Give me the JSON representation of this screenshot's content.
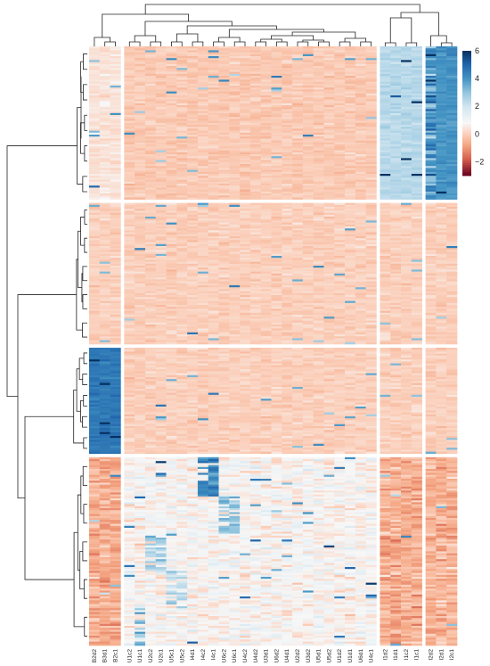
{
  "chart_data": {
    "type": "heatmap",
    "title": "",
    "xlabel": "",
    "ylabel": "",
    "columns": [
      "B2d2",
      "B3d1",
      "B2c1",
      "U1c2",
      "U1c1",
      "U2c2",
      "U2c1",
      "U5c1",
      "U5c2",
      "I4d1",
      "I4c2",
      "I4c1",
      "U6c2",
      "U6c1",
      "U4c2",
      "U4d2",
      "U3d1",
      "U6d2",
      "U4d1",
      "U2d2",
      "U3d2",
      "U5d1",
      "U5d2",
      "U1d2",
      "U1d1",
      "U6d1",
      "U4c1",
      "I1d2",
      "I1d1",
      "I1c2",
      "I1c1",
      "I2d2",
      "I2d1",
      "I2c1"
    ],
    "column_groups": [
      3,
      24,
      4,
      3
    ],
    "row_group_fractions": [
      0.26,
      0.24,
      0.18,
      0.32
    ],
    "group_pattern": [
      [
        0.4,
        -0.1,
        2.4,
        4.0,
        0
      ],
      [
        0,
        0,
        0,
        0,
        4.2
      ],
      [
        4.6,
        0,
        0,
        0,
        0
      ],
      [
        -0.6,
        0.8,
        -0.6,
        -0.5,
        -0.6
      ]
    ],
    "high_blocks": [
      {
        "row_group": 3,
        "columns": [
          "U1c1"
        ],
        "value": 3.2
      },
      {
        "row_group": 3,
        "columns": [
          "U2c2",
          "U2c1"
        ],
        "value": 2.6
      },
      {
        "row_group": 3,
        "columns": [
          "I4c2",
          "I4c1"
        ],
        "value": 4.2
      },
      {
        "row_group": 3,
        "columns": [
          "U5c1",
          "U5c2"
        ],
        "value": 2.4
      },
      {
        "row_group": 3,
        "columns": [
          "U6c2",
          "U6c1"
        ],
        "value": 3.0
      }
    ],
    "color_scale": {
      "min": -3,
      "max": 6,
      "ticks": [
        6,
        4,
        2,
        0,
        -2
      ],
      "stops": [
        {
          "value": -3,
          "color": "#67001f"
        },
        {
          "value": -1.8,
          "color": "#d6604d"
        },
        {
          "value": -0.8,
          "color": "#f4a582"
        },
        {
          "value": 0,
          "color": "#fbd0bc"
        },
        {
          "value": 0.8,
          "color": "#f7f7f7"
        },
        {
          "value": 2,
          "color": "#d1e5f0"
        },
        {
          "value": 3,
          "color": "#92c5de"
        },
        {
          "value": 4,
          "color": "#4393c3"
        },
        {
          "value": 5,
          "color": "#2166ac"
        },
        {
          "value": 6,
          "color": "#053061"
        }
      ]
    },
    "legend_position": "right-top",
    "row_dendrogram": true,
    "column_dendrogram": true
  }
}
